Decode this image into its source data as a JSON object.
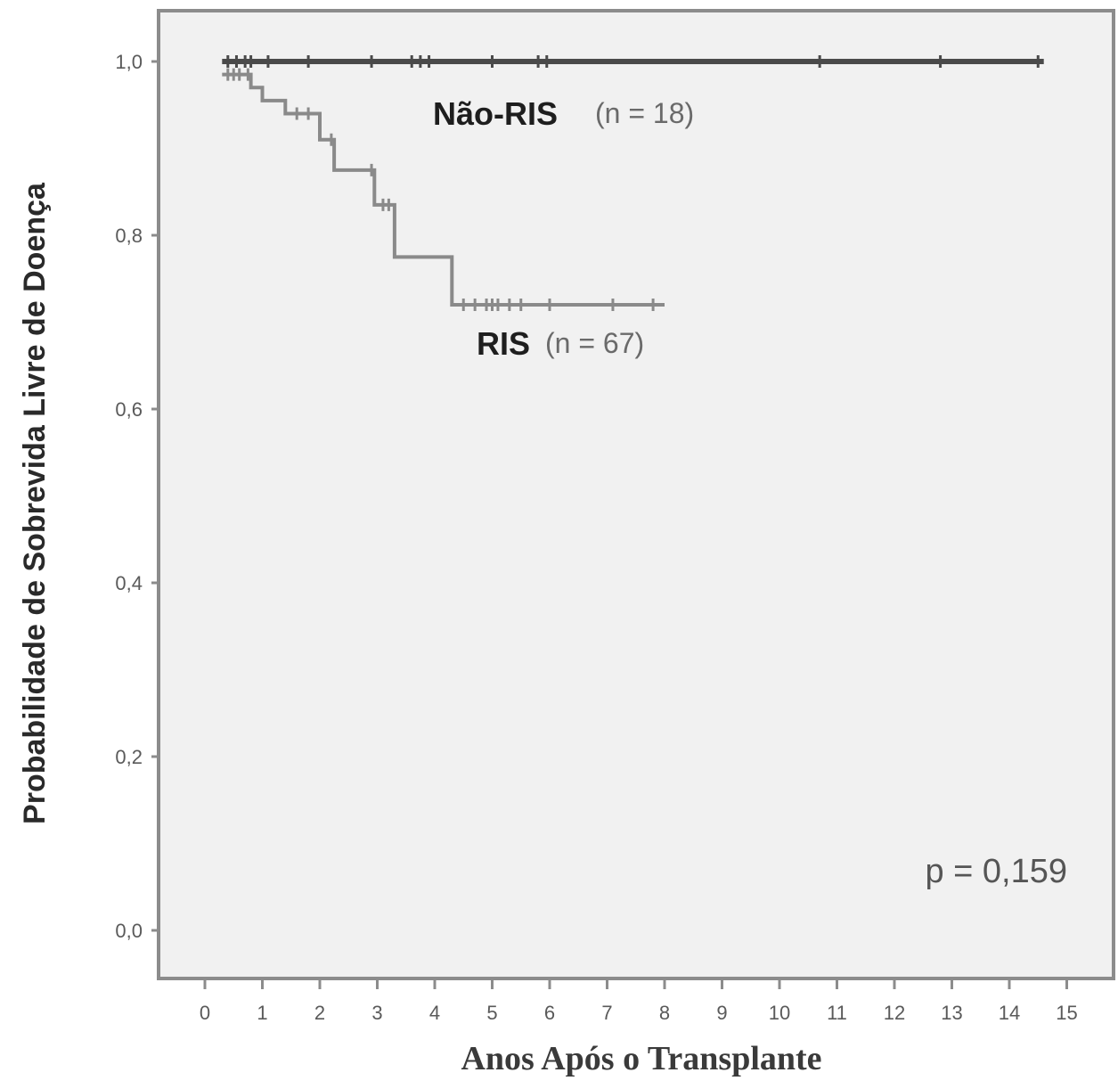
{
  "chart_data": {
    "type": "line",
    "subtype": "kaplan-meier",
    "title": "",
    "xlabel": "Anos Após o Transplante",
    "ylabel": "Probabilidade de Sobrevida Livre de Doença",
    "xlim": [
      0,
      15
    ],
    "ylim": [
      0.0,
      1.0
    ],
    "x_ticks": [
      "0",
      "1",
      "2",
      "3",
      "4",
      "5",
      "6",
      "7",
      "8",
      "9",
      "10",
      "11",
      "12",
      "13",
      "14",
      "15"
    ],
    "y_ticks": [
      "0,0",
      "0,2",
      "0,4",
      "0,6",
      "0,8",
      "1,0"
    ],
    "grid": false,
    "background": "#f1f1f1",
    "series": [
      {
        "name": "Não-RIS",
        "n_label": "(n = 18)",
        "color": "#4a4a4a",
        "steps": [
          [
            0.3,
            1.0
          ],
          [
            14.6,
            1.0
          ]
        ],
        "censored": [
          0.4,
          0.55,
          0.7,
          0.8,
          1.1,
          1.8,
          2.9,
          3.6,
          3.75,
          3.9,
          5.0,
          5.8,
          5.95,
          10.7,
          12.8,
          14.5
        ]
      },
      {
        "name": "RIS",
        "n_label": "(n = 67)",
        "color": "#8a8a8a",
        "steps": [
          [
            0.3,
            0.985
          ],
          [
            0.8,
            0.985
          ],
          [
            0.8,
            0.97
          ],
          [
            1.0,
            0.97
          ],
          [
            1.0,
            0.955
          ],
          [
            1.4,
            0.955
          ],
          [
            1.4,
            0.94
          ],
          [
            2.0,
            0.94
          ],
          [
            2.0,
            0.91
          ],
          [
            2.25,
            0.91
          ],
          [
            2.25,
            0.875
          ],
          [
            2.95,
            0.875
          ],
          [
            2.95,
            0.835
          ],
          [
            3.3,
            0.835
          ],
          [
            3.3,
            0.775
          ],
          [
            4.3,
            0.775
          ],
          [
            4.3,
            0.72
          ],
          [
            8.0,
            0.72
          ]
        ],
        "censored": [
          0.4,
          0.5,
          0.6,
          0.75,
          1.6,
          1.8,
          2.2,
          2.9,
          3.1,
          3.2,
          4.5,
          4.7,
          4.9,
          5.0,
          5.1,
          5.3,
          5.5,
          6.0,
          7.1,
          7.8
        ]
      }
    ],
    "annotations": {
      "p_value": "p = 0,159"
    }
  }
}
